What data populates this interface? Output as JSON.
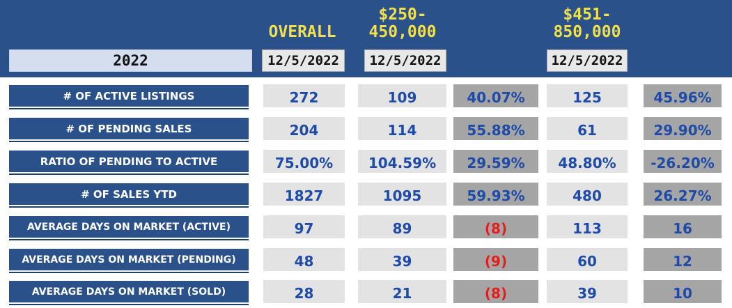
{
  "headers": {
    "overall": "OVERALL",
    "band1": "$250-\n450,000",
    "band2": "$451-\n850,000"
  },
  "year": "2022",
  "dates": {
    "overall": "12/5/2022",
    "band1": "12/5/2022",
    "band2": "12/5/2022"
  },
  "rows": [
    {
      "label": "# OF ACTIVE LISTINGS",
      "overall": "272",
      "band1": "109",
      "band1_pct": "40.07%",
      "band2": "125",
      "band2_pct": "45.96%"
    },
    {
      "label": "# OF PENDING SALES",
      "overall": "204",
      "band1": "114",
      "band1_pct": "55.88%",
      "band2": "61",
      "band2_pct": "29.90%"
    },
    {
      "label": "RATIO OF PENDING TO ACTIVE",
      "overall": "75.00%",
      "band1": "104.59%",
      "band1_pct": "29.59%",
      "band2": "48.80%",
      "band2_pct": "-26.20%"
    },
    {
      "label": "# OF SALES YTD",
      "overall": "1827",
      "band1": "1095",
      "band1_pct": "59.93%",
      "band2": "480",
      "band2_pct": "26.27%"
    },
    {
      "label": "AVERAGE DAYS ON MARKET (ACTIVE)",
      "overall": "97",
      "band1": "89",
      "band1_pct": "(8)",
      "band2": "113",
      "band2_pct": "16"
    },
    {
      "label": "AVERAGE DAYS ON MARKET (PENDING)",
      "overall": "48",
      "band1": "39",
      "band1_pct": "(9)",
      "band2": "60",
      "band2_pct": "12"
    },
    {
      "label": "AVERAGE DAYS ON MARKET (SOLD)",
      "overall": "28",
      "band1": "21",
      "band1_pct": "(8)",
      "band2": "39",
      "band2_pct": "10"
    }
  ],
  "colors": {
    "header_bg": "#2a5189",
    "header_text": "#f4e04a",
    "value_text": "#1f4ba8",
    "negative_text": "#e81b1b"
  }
}
